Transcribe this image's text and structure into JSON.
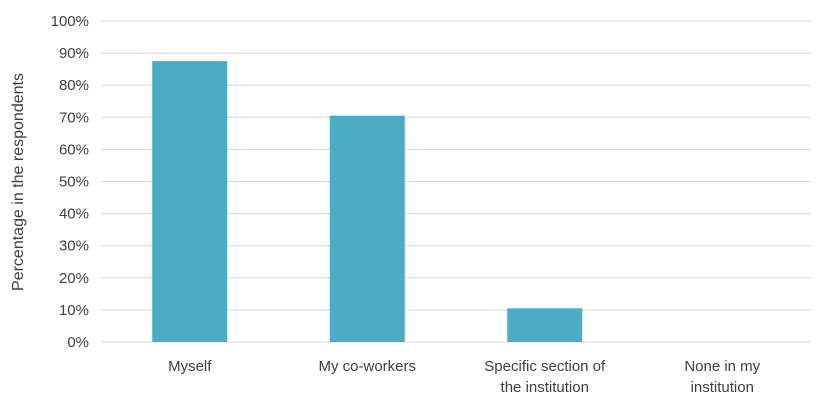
{
  "chart_data": {
    "type": "bar",
    "title": "",
    "xlabel": "",
    "ylabel": "Percentage in the respondents",
    "ylim": [
      0,
      100
    ],
    "yticks": [
      "0%",
      "10%",
      "20%",
      "30%",
      "40%",
      "50%",
      "60%",
      "70%",
      "80%",
      "90%",
      "100%"
    ],
    "tick_values": [
      0,
      10,
      20,
      30,
      40,
      50,
      60,
      70,
      80,
      90,
      100
    ],
    "categories": [
      [
        "Myself"
      ],
      [
        "My co-workers"
      ],
      [
        "Specific section of",
        "the institution"
      ],
      [
        "None in my",
        "institution"
      ]
    ],
    "values": [
      87.5,
      70.5,
      10.5,
      0
    ],
    "bar_color": "#4bacc6",
    "grid": true,
    "legend": "none"
  }
}
